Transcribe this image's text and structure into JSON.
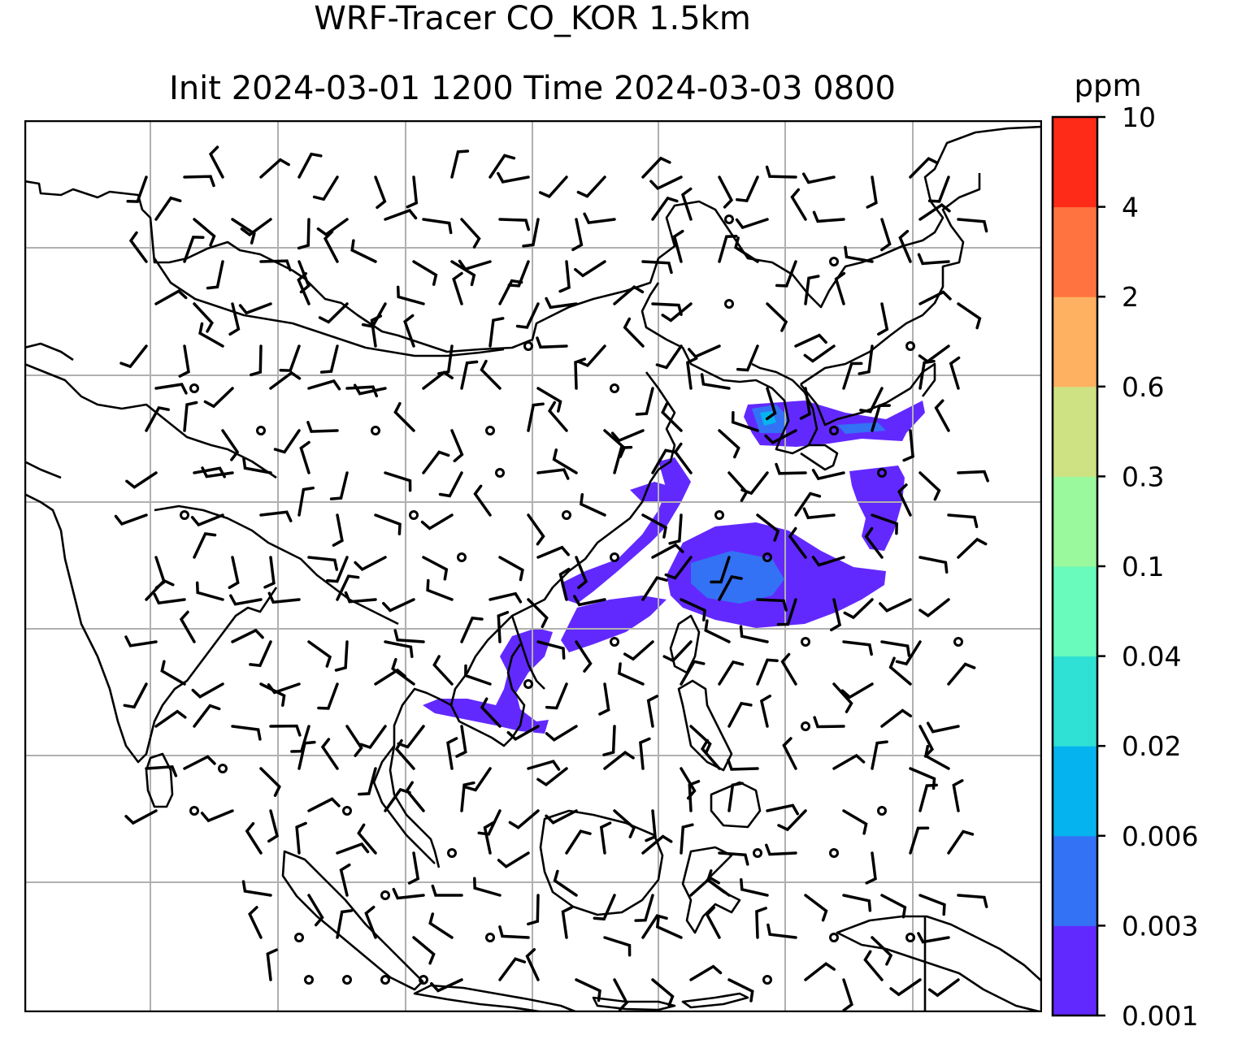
{
  "title": {
    "line1": "WRF-Tracer CO_KOR 1.5km",
    "line2": "Init 2024-03-01 1200 Time 2024-03-03 0800"
  },
  "colorbar": {
    "unit": "ppm",
    "ticks": [
      "0.001",
      "0.003",
      "0.006",
      "0.02",
      "0.04",
      "0.1",
      "0.3",
      "0.6",
      "2",
      "4",
      "10"
    ],
    "colors": [
      "#6229ff",
      "#3372f5",
      "#05b4ee",
      "#2fe0d5",
      "#69fbbb",
      "#9af89d",
      "#cee283",
      "#feb160",
      "#ff7340",
      "#ff2b19"
    ]
  },
  "map": {
    "gridlines": true,
    "frame_color": "#000000",
    "coastline_color": "#000000",
    "grid_color": "#b0b0b0"
  }
}
